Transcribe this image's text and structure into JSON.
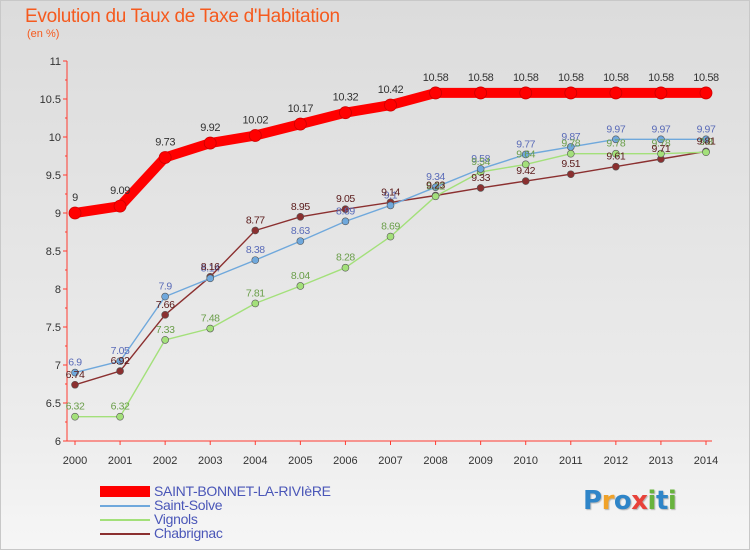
{
  "chart_data": {
    "type": "line",
    "title": "Evolution du Taux de Taxe d'Habitation",
    "ylabel": "(en %)",
    "ylim": [
      6,
      11
    ],
    "y_ticks": [
      "6",
      "6.5",
      "7",
      "7.5",
      "8",
      "8.5",
      "9",
      "9.5",
      "10",
      "10.5",
      "11"
    ],
    "y_tick_values": [
      6,
      6.5,
      7,
      7.5,
      8,
      8.5,
      9,
      9.5,
      10,
      10.5,
      11
    ],
    "x": [
      "2000",
      "2001",
      "2002",
      "2003",
      "2004",
      "2005",
      "2006",
      "2007",
      "2008",
      "2009",
      "2010",
      "2011",
      "2012",
      "2013",
      "2014"
    ],
    "grid": false,
    "legend_position": "bottom-left",
    "series": [
      {
        "name": "SAINT-BONNET-LA-RIVIèRE",
        "color": "#ff0000",
        "values": [
          9,
          9.09,
          9.73,
          9.92,
          10.02,
          10.17,
          10.32,
          10.42,
          10.58,
          10.58,
          10.58,
          10.58,
          10.58,
          10.58,
          10.58
        ],
        "labels": [
          "9",
          "9.09",
          "9.73",
          "9.92",
          "10.02",
          "10.17",
          "10.32",
          "10.42",
          "10.58",
          "10.58",
          "10.58",
          "10.58",
          "10.58",
          "10.58",
          "10.58"
        ]
      },
      {
        "name": "Saint-Solve",
        "color": "#6fa8dc",
        "values": [
          6.9,
          7.05,
          7.9,
          8.14,
          8.38,
          8.63,
          8.89,
          9.1,
          9.34,
          9.58,
          9.77,
          9.87,
          9.97,
          9.97,
          9.97
        ],
        "labels": [
          "6.9",
          "7.05",
          "7.9",
          "8.14",
          "8.38",
          "8.63",
          "8.89",
          "9.1",
          "9.34",
          "9.58",
          "9.77",
          "9.87",
          "9.97",
          "9.97",
          "9.97"
        ]
      },
      {
        "name": "Vignols",
        "color": "#a3e07a",
        "values": [
          6.32,
          6.32,
          7.33,
          7.48,
          7.81,
          8.04,
          8.28,
          8.69,
          9.22,
          9.54,
          9.64,
          9.78,
          9.78,
          9.78,
          9.8
        ],
        "labels": [
          "6.32",
          "6.32",
          "7.33",
          "7.48",
          "7.81",
          "8.04",
          "8.28",
          "8.69",
          "9.22",
          "9.54",
          "9.64",
          "9.78",
          "9.78",
          "9.78",
          "9.8"
        ]
      },
      {
        "name": "Chabrignac",
        "color": "#8b3030",
        "values": [
          6.74,
          6.92,
          7.66,
          8.16,
          8.77,
          8.95,
          9.05,
          9.14,
          9.23,
          9.33,
          9.42,
          9.51,
          9.61,
          9.71,
          9.81
        ],
        "labels": [
          "6.74",
          "6.92",
          "7.66",
          "8.16",
          "8.77",
          "8.95",
          "9.05",
          "9.14",
          "9.23",
          "9.33",
          "9.42",
          "9.51",
          "9.61",
          "9.71",
          "9.81"
        ]
      }
    ]
  },
  "legend": {
    "items": [
      {
        "label": "SAINT-BONNET-LA-RIVIèRE",
        "color": "#ff0000"
      },
      {
        "label": "Saint-Solve",
        "color": "#6fa8dc"
      },
      {
        "label": "Vignols",
        "color": "#a3e07a"
      },
      {
        "label": "Chabrignac",
        "color": "#8b3030"
      }
    ]
  },
  "brand": {
    "logo_text": "Proxiti"
  }
}
